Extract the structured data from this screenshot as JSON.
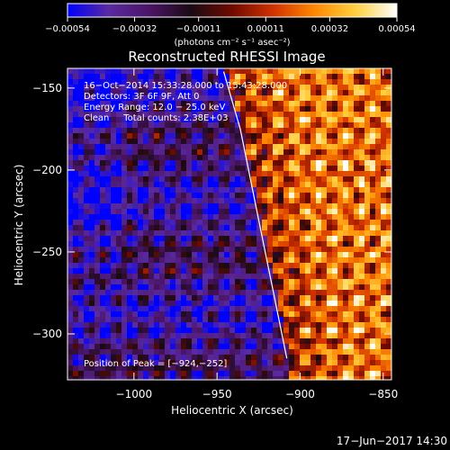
{
  "chart_data": {
    "type": "heatmap",
    "title": "Reconstructed RHESSI Image",
    "xlabel": "Heliocentric X (arcsec)",
    "ylabel": "Heliocentric Y (arcsec)",
    "xlim": [
      -1040,
      -845
    ],
    "ylim": [
      -328,
      -138
    ],
    "x_ticks": [
      {
        "value": -1000,
        "label": "−1000"
      },
      {
        "value": -950,
        "label": "−950"
      },
      {
        "value": -900,
        "label": "−900"
      },
      {
        "value": -850,
        "label": "−850"
      }
    ],
    "y_ticks": [
      {
        "value": -150,
        "label": "−150"
      },
      {
        "value": -200,
        "label": "−200"
      },
      {
        "value": -250,
        "label": "−250"
      },
      {
        "value": -300,
        "label": "−300"
      }
    ],
    "colorbar": {
      "range": [
        -0.00054,
        0.00054
      ],
      "ticks": [
        {
          "value": -0.00054,
          "label": "−0.00054"
        },
        {
          "value": -0.00032,
          "label": "−0.00032"
        },
        {
          "value": -0.00011,
          "label": "−0.00011"
        },
        {
          "value": 0.00011,
          "label": "0.00011"
        },
        {
          "value": 0.00032,
          "label": "0.00032"
        },
        {
          "value": 0.00054,
          "label": "0.00054"
        }
      ],
      "unit_label": "(photons cm⁻² s⁻¹ asec⁻²)",
      "colors": [
        "#0000ff",
        "#5a2aa0",
        "#4a1466",
        "#1a0a14",
        "#6e0a00",
        "#d23200",
        "#ff8800",
        "#ffd040",
        "#ffffff"
      ]
    },
    "limb_curve": [
      {
        "x": -946,
        "y": -140
      },
      {
        "x": -936,
        "y": -175
      },
      {
        "x": -929,
        "y": -210
      },
      {
        "x": -922,
        "y": -245
      },
      {
        "x": -915,
        "y": -280
      },
      {
        "x": -908,
        "y": -315
      }
    ],
    "annotations": [
      "16−Oct−2014 15:33:28.000 to 15:43:28.000",
      "Detectors: 3F 6F 9F, Att 0",
      "Energy Range: 12.0 − 25.0 keV",
      "Clean     Total counts: 2.38E+03"
    ],
    "peak": {
      "label": "Position of Peak = [−924,−252]",
      "x": -924,
      "y": -252
    },
    "timestamp": "17−Jun−2017 14:30"
  }
}
